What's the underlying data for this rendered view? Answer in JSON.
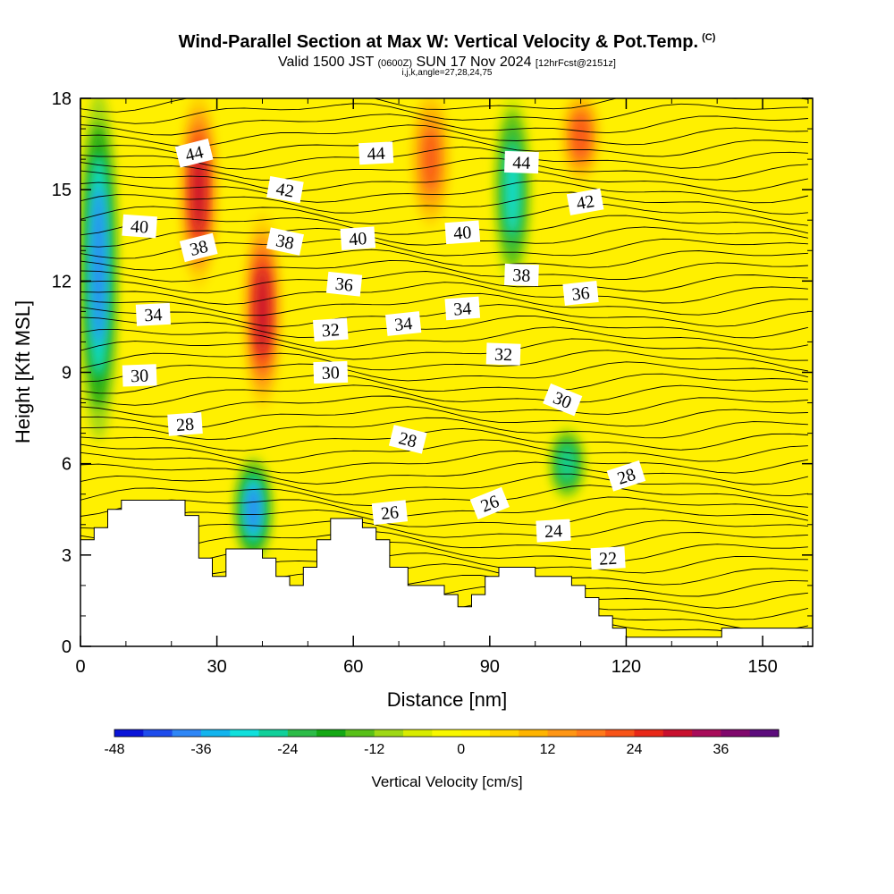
{
  "title": {
    "main": "Wind-Parallel Section at Max W: Vertical Velocity & Pot.Temp.",
    "main_suffix": "(C)",
    "valid_prefix": "Valid 1500 JST",
    "valid_utc": "(0600Z)",
    "valid_date": "SUN 17 Nov 2024",
    "forecast": "[12hrFcst@2151z]",
    "indices": "i,j,k,angle=27,28,24,75"
  },
  "chart_data": {
    "type": "heatmap",
    "xlabel": "Distance [nm]",
    "ylabel": "Height [Kft MSL]",
    "xlim": [
      0,
      161
    ],
    "ylim": [
      0,
      18
    ],
    "x_ticks": [
      0,
      30,
      60,
      90,
      120,
      150
    ],
    "y_ticks": [
      0,
      3,
      6,
      9,
      12,
      15,
      18
    ],
    "colorbar": {
      "title": "Vertical Velocity [cm/s]",
      "levels": [
        -48,
        -44,
        -40,
        -36,
        -32,
        -28,
        -24,
        -20,
        -16,
        -12,
        -8,
        -4,
        0,
        4,
        8,
        12,
        16,
        20,
        24,
        28,
        32,
        36,
        40
      ],
      "tick_labels": [
        "-48",
        "-36",
        "-24",
        "-12",
        "0",
        "12",
        "24",
        "36"
      ],
      "tick_values": [
        -48,
        -36,
        -24,
        -12,
        0,
        12,
        24,
        36
      ],
      "colors": [
        "#0a14d8",
        "#1e4cec",
        "#2e86f6",
        "#12b4ee",
        "#10e0dc",
        "#10d09a",
        "#2cbc48",
        "#14a814",
        "#58c018",
        "#9ed814",
        "#d8ec00",
        "#f8f800",
        "#fff000",
        "#ffd400",
        "#ffb400",
        "#ff9614",
        "#ff7a1a",
        "#f85418",
        "#e82818",
        "#c8102e",
        "#a80c5a",
        "#80086c",
        "#5c0c7c"
      ]
    },
    "terrain_profile": {
      "x": [
        0,
        3,
        3,
        6,
        6,
        9,
        9,
        12,
        12,
        23,
        23,
        26,
        26,
        29,
        29,
        32,
        32,
        35,
        35,
        40,
        40,
        43,
        43,
        46,
        46,
        49,
        49,
        52,
        52,
        55,
        55,
        58,
        58,
        62,
        62,
        65,
        65,
        68,
        68,
        72,
        72,
        80,
        80,
        83,
        83,
        86,
        86,
        89,
        89,
        92,
        92,
        100,
        100,
        108,
        108,
        111,
        111,
        114,
        114,
        117,
        117,
        120,
        120,
        123,
        123,
        132,
        132,
        141,
        141,
        161
      ],
      "y": [
        3.5,
        3.5,
        3.9,
        3.9,
        4.5,
        4.5,
        4.8,
        4.8,
        4.8,
        4.8,
        4.3,
        4.3,
        2.9,
        2.9,
        2.3,
        2.3,
        3.2,
        3.2,
        3.2,
        3.2,
        2.9,
        2.9,
        2.3,
        2.3,
        2.0,
        2.0,
        2.6,
        2.6,
        3.5,
        3.5,
        4.2,
        4.2,
        4.2,
        4.2,
        3.9,
        3.9,
        3.5,
        3.5,
        2.6,
        2.6,
        2.0,
        2.0,
        1.7,
        1.7,
        1.3,
        1.3,
        1.7,
        1.7,
        2.3,
        2.3,
        2.6,
        2.6,
        2.3,
        2.3,
        2.0,
        2.0,
        1.6,
        1.6,
        1.0,
        1.0,
        0.6,
        0.6,
        0.3,
        0.3,
        0.3,
        0.3,
        0.3,
        0.3,
        0.6,
        0.6
      ]
    },
    "theta_contours": {
      "levels": [
        22,
        24,
        26,
        28,
        30,
        32,
        34,
        36,
        38,
        40,
        42,
        44
      ],
      "labels": [
        {
          "value": "44",
          "x": 25,
          "y": 16.2,
          "angle": -14
        },
        {
          "value": "44",
          "x": 65,
          "y": 16.2,
          "angle": -3
        },
        {
          "value": "44",
          "x": 97,
          "y": 15.9,
          "angle": 2
        },
        {
          "value": "42",
          "x": 45,
          "y": 15.0,
          "angle": 10
        },
        {
          "value": "42",
          "x": 111,
          "y": 14.6,
          "angle": -10
        },
        {
          "value": "40",
          "x": 13,
          "y": 13.8,
          "angle": 4
        },
        {
          "value": "40",
          "x": 61,
          "y": 13.4,
          "angle": -4
        },
        {
          "value": "40",
          "x": 84,
          "y": 13.6,
          "angle": -4
        },
        {
          "value": "38",
          "x": 26,
          "y": 13.1,
          "angle": -14
        },
        {
          "value": "38",
          "x": 45,
          "y": 13.3,
          "angle": 12
        },
        {
          "value": "38",
          "x": 97,
          "y": 12.2,
          "angle": 2
        },
        {
          "value": "36",
          "x": 58,
          "y": 11.9,
          "angle": 6
        },
        {
          "value": "36",
          "x": 110,
          "y": 11.6,
          "angle": -6
        },
        {
          "value": "34",
          "x": 16,
          "y": 10.9,
          "angle": -3
        },
        {
          "value": "34",
          "x": 71,
          "y": 10.6,
          "angle": -6
        },
        {
          "value": "34",
          "x": 84,
          "y": 11.1,
          "angle": -4
        },
        {
          "value": "32",
          "x": 55,
          "y": 10.4,
          "angle": -4
        },
        {
          "value": "32",
          "x": 93,
          "y": 9.6,
          "angle": 2
        },
        {
          "value": "30",
          "x": 13,
          "y": 8.9,
          "angle": -2
        },
        {
          "value": "30",
          "x": 55,
          "y": 9.0,
          "angle": -2
        },
        {
          "value": "30",
          "x": 106,
          "y": 8.1,
          "angle": 22
        },
        {
          "value": "28",
          "x": 23,
          "y": 7.3,
          "angle": -4
        },
        {
          "value": "28",
          "x": 72,
          "y": 6.8,
          "angle": 14
        },
        {
          "value": "28",
          "x": 120,
          "y": 5.6,
          "angle": -18
        },
        {
          "value": "26",
          "x": 68,
          "y": 4.4,
          "angle": -6
        },
        {
          "value": "26",
          "x": 90,
          "y": 4.7,
          "angle": -22
        },
        {
          "value": "24",
          "x": 104,
          "y": 3.8,
          "angle": -3
        },
        {
          "value": "22",
          "x": 116,
          "y": 2.9,
          "angle": -3
        }
      ]
    },
    "vertical_velocity_features": [
      {
        "x": 4,
        "y_bottom": 7,
        "y_top": 18,
        "w_max": -40
      },
      {
        "x": 26,
        "y_bottom": 12,
        "y_top": 18,
        "w_max": 28
      },
      {
        "x": 40,
        "y_bottom": 8,
        "y_top": 14,
        "w_max": 28
      },
      {
        "x": 38,
        "y_bottom": 3,
        "y_top": 6,
        "w_max": -38
      },
      {
        "x": 95,
        "y_bottom": 12,
        "y_top": 18,
        "w_max": -30
      },
      {
        "x": 107,
        "y_bottom": 5,
        "y_top": 7,
        "w_max": -28
      },
      {
        "x": 110,
        "y_bottom": 15.5,
        "y_top": 18,
        "w_max": 22
      },
      {
        "x": 77,
        "y_bottom": 14,
        "y_top": 18,
        "w_max": 20
      }
    ]
  }
}
